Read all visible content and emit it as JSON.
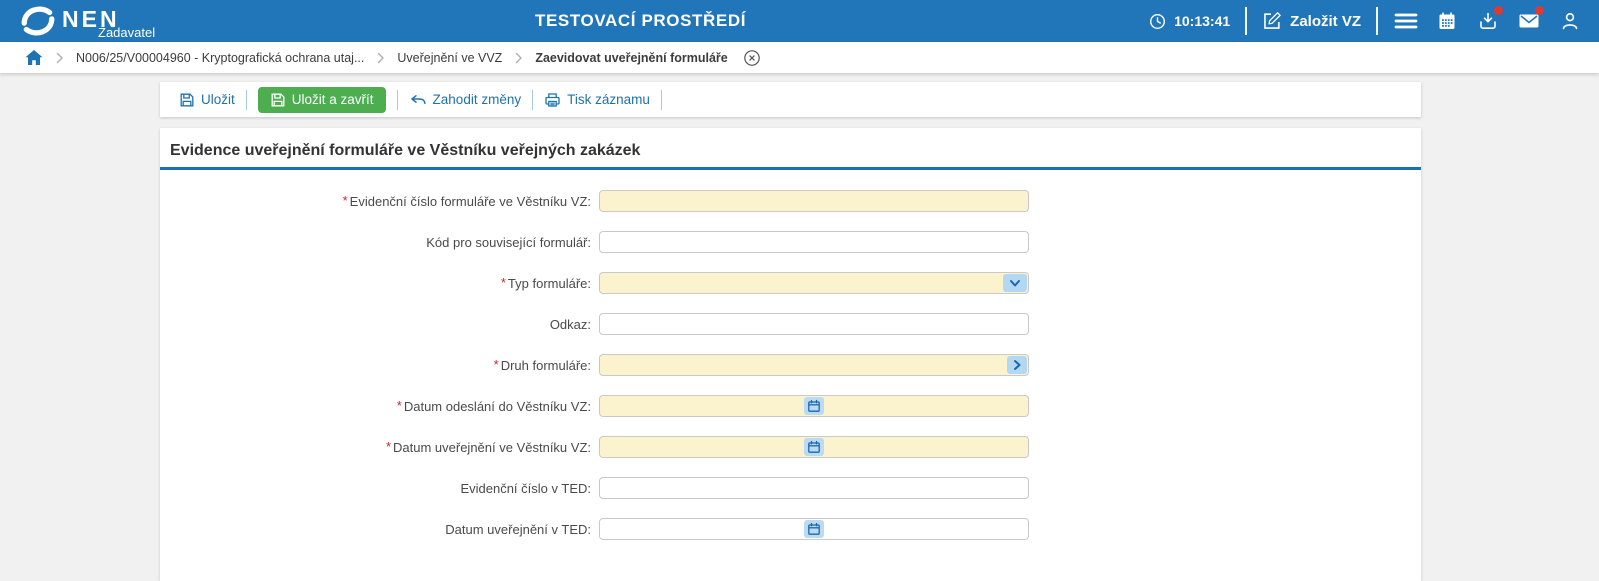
{
  "header": {
    "brand": "NEN",
    "brand_subtitle": "Zadavatel",
    "environment_title": "TESTOVACÍ PROSTŘEDÍ",
    "time": "10:13:41",
    "create_vz_label": "Založit VZ",
    "icons": [
      "nen-logo-icon",
      "clock-icon",
      "edit-icon",
      "menu-icon",
      "calendar-icon",
      "download-icon",
      "mail-icon",
      "user-icon"
    ],
    "download_unread_dot": true,
    "mail_unread_dot": true
  },
  "breadcrumb": {
    "items": [
      "N006/25/V00004960 - Kryptografická ochrana utaj...",
      "Uveřejnění ve VVZ",
      "Zaevidovat uveřejnění formuláře"
    ],
    "icons": [
      "home-icon",
      "chevron-right-icon",
      "close-circle-icon"
    ]
  },
  "toolbar": {
    "save_label": "Uložit",
    "save_and_close_label": "Uložit a zavřít",
    "discard_label": "Zahodit změny",
    "print_label": "Tisk záznamu",
    "icons": [
      "save-icon",
      "undo-icon",
      "print-icon"
    ]
  },
  "form": {
    "title": "Evidence uveřejnění formuláře ve Věstníku veřejných zakázek",
    "fields": [
      {
        "name": "evidencni-cislo-formulare-vvz",
        "label": "Evidenční číslo formuláře ve Věstníku VZ:",
        "required": true,
        "type": "text",
        "value": ""
      },
      {
        "name": "kod-pro-souvisejici-formular",
        "label": "Kód pro související formulář:",
        "required": false,
        "type": "text",
        "value": ""
      },
      {
        "name": "typ-formulare",
        "label": "Typ formuláře:",
        "required": true,
        "type": "dropdown",
        "value": ""
      },
      {
        "name": "odkaz",
        "label": "Odkaz:",
        "required": false,
        "type": "text",
        "value": ""
      },
      {
        "name": "druh-formulare",
        "label": "Druh formuláře:",
        "required": true,
        "type": "picker",
        "value": ""
      },
      {
        "name": "datum-odeslani-do-vestniku-vz",
        "label": "Datum odeslání do Věstníku VZ:",
        "required": true,
        "type": "date",
        "value": ""
      },
      {
        "name": "datum-uverejneni-ve-vestniku-vz",
        "label": "Datum uveřejnění ve Věstníku VZ:",
        "required": true,
        "type": "date",
        "value": ""
      },
      {
        "name": "evidencni-cislo-v-ted",
        "label": "Evidenční číslo v TED:",
        "required": false,
        "type": "text",
        "value": ""
      },
      {
        "name": "datum-uverejneni-v-ted",
        "label": "Datum uveřejnění v TED:",
        "required": false,
        "type": "date",
        "value": ""
      }
    ]
  },
  "colors": {
    "header_bg": "#2076b9",
    "accent_green": "#4cae4f",
    "required_field_bg": "#fbf3ce",
    "link_blue": "#2072ae",
    "badge_red": "#e0392f",
    "title_underline": "#1a6fb5",
    "field_button_bg": "#b5d8f2"
  }
}
